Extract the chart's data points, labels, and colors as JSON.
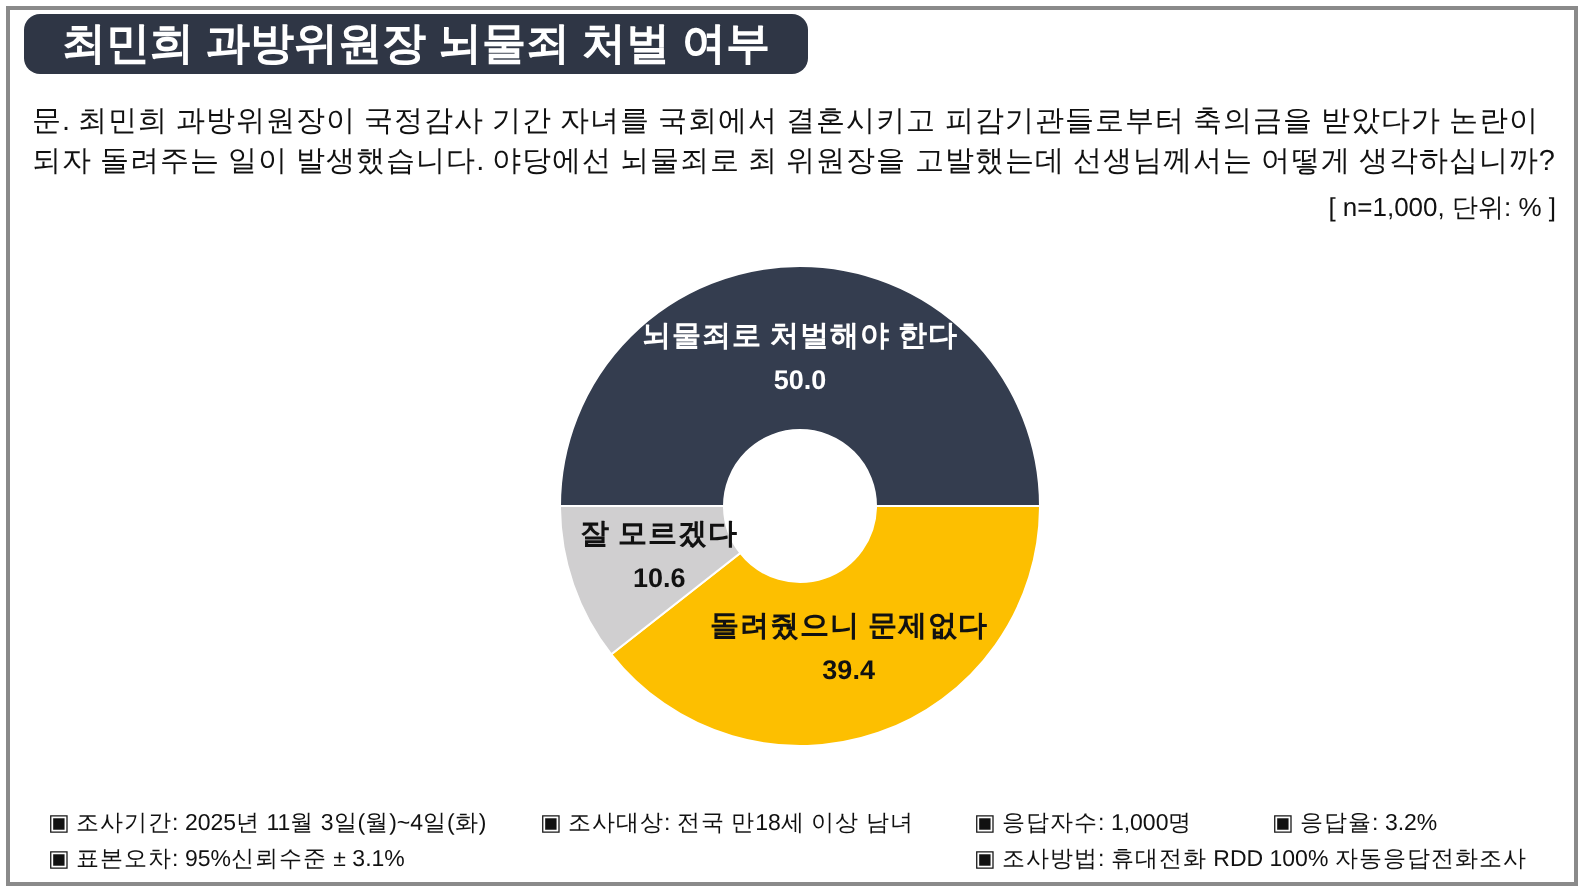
{
  "chart_data": {
    "type": "donut",
    "title": "최민희 과방위원장 뇌물죄 처벌 여부",
    "subtitle": "문. 최민희 과방위원장이 국정감사 기간 자녀를 국회에서 결혼시키고 피감기관들로부터 축의금을 받았다가 논란이 되자 돌려주는 일이 발생했습니다. 야당에선 뇌물죄로 최 위원장을 고발했는데 선생님께서는 어떻게 생각하십니까?",
    "categories": [
      "뇌물죄로 처벌해야 한다",
      "돌려줬으니 문제없다",
      "잘 모르겠다"
    ],
    "values": [
      50.0,
      39.4,
      10.6
    ],
    "value_labels": [
      "50.0",
      "39.4",
      "10.6"
    ],
    "colors": [
      "#343d4f",
      "#fdbf00",
      "#d0cfd0"
    ],
    "annotations": [
      "[ n=1,000, 단위: % ]",
      "▣ 조사기간: 2025년 11월 3일(월)~4일(화)",
      "▣ 조사대상: 전국 만18세 이상 남녀",
      "▣ 응답자수: 1,000명",
      "▣ 응답율: 3.2%",
      "▣ 표본오차: 95%신뢰수준 ± 3.1%",
      "▣ 조사방법: 휴대전화 RDD 100% 자동응답전화조사"
    ]
  }
}
